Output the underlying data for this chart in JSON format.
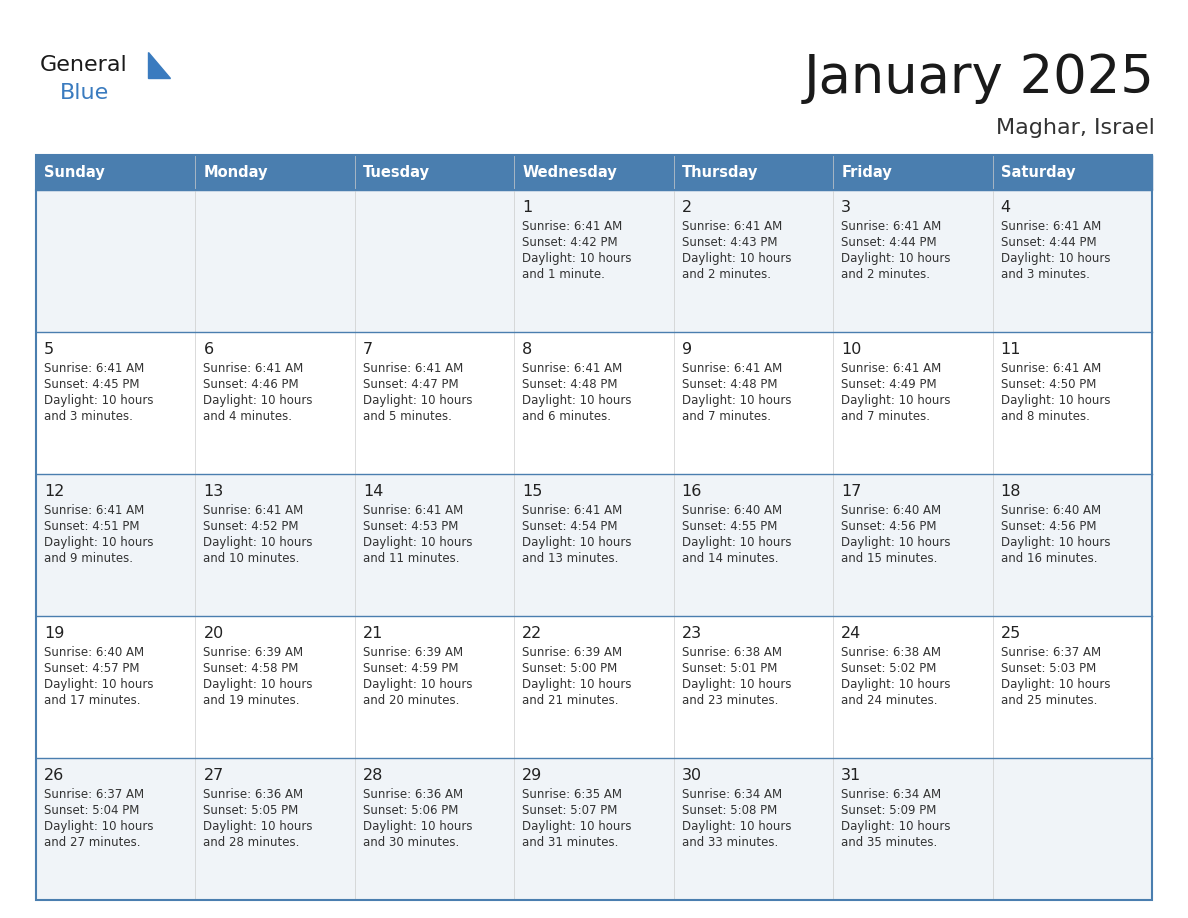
{
  "title": "January 2025",
  "subtitle": "Maghar, Israel",
  "days_of_week": [
    "Sunday",
    "Monday",
    "Tuesday",
    "Wednesday",
    "Thursday",
    "Friday",
    "Saturday"
  ],
  "header_bg": "#4A7EAF",
  "header_text_color": "#ffffff",
  "cell_bg_odd": "#f0f4f8",
  "cell_bg_even": "#ffffff",
  "text_color": "#333333",
  "border_color": "#4A7EAF",
  "grid_color": "#4A7EAF",
  "days": [
    {
      "day": null,
      "sunrise": null,
      "sunset": null,
      "daylight": null
    },
    {
      "day": null,
      "sunrise": null,
      "sunset": null,
      "daylight": null
    },
    {
      "day": null,
      "sunrise": null,
      "sunset": null,
      "daylight": null
    },
    {
      "day": 1,
      "sunrise": "6:41 AM",
      "sunset": "4:42 PM",
      "daylight": "10 hours\nand 1 minute."
    },
    {
      "day": 2,
      "sunrise": "6:41 AM",
      "sunset": "4:43 PM",
      "daylight": "10 hours\nand 2 minutes."
    },
    {
      "day": 3,
      "sunrise": "6:41 AM",
      "sunset": "4:44 PM",
      "daylight": "10 hours\nand 2 minutes."
    },
    {
      "day": 4,
      "sunrise": "6:41 AM",
      "sunset": "4:44 PM",
      "daylight": "10 hours\nand 3 minutes."
    },
    {
      "day": 5,
      "sunrise": "6:41 AM",
      "sunset": "4:45 PM",
      "daylight": "10 hours\nand 3 minutes."
    },
    {
      "day": 6,
      "sunrise": "6:41 AM",
      "sunset": "4:46 PM",
      "daylight": "10 hours\nand 4 minutes."
    },
    {
      "day": 7,
      "sunrise": "6:41 AM",
      "sunset": "4:47 PM",
      "daylight": "10 hours\nand 5 minutes."
    },
    {
      "day": 8,
      "sunrise": "6:41 AM",
      "sunset": "4:48 PM",
      "daylight": "10 hours\nand 6 minutes."
    },
    {
      "day": 9,
      "sunrise": "6:41 AM",
      "sunset": "4:48 PM",
      "daylight": "10 hours\nand 7 minutes."
    },
    {
      "day": 10,
      "sunrise": "6:41 AM",
      "sunset": "4:49 PM",
      "daylight": "10 hours\nand 7 minutes."
    },
    {
      "day": 11,
      "sunrise": "6:41 AM",
      "sunset": "4:50 PM",
      "daylight": "10 hours\nand 8 minutes."
    },
    {
      "day": 12,
      "sunrise": "6:41 AM",
      "sunset": "4:51 PM",
      "daylight": "10 hours\nand 9 minutes."
    },
    {
      "day": 13,
      "sunrise": "6:41 AM",
      "sunset": "4:52 PM",
      "daylight": "10 hours\nand 10 minutes."
    },
    {
      "day": 14,
      "sunrise": "6:41 AM",
      "sunset": "4:53 PM",
      "daylight": "10 hours\nand 11 minutes."
    },
    {
      "day": 15,
      "sunrise": "6:41 AM",
      "sunset": "4:54 PM",
      "daylight": "10 hours\nand 13 minutes."
    },
    {
      "day": 16,
      "sunrise": "6:40 AM",
      "sunset": "4:55 PM",
      "daylight": "10 hours\nand 14 minutes."
    },
    {
      "day": 17,
      "sunrise": "6:40 AM",
      "sunset": "4:56 PM",
      "daylight": "10 hours\nand 15 minutes."
    },
    {
      "day": 18,
      "sunrise": "6:40 AM",
      "sunset": "4:56 PM",
      "daylight": "10 hours\nand 16 minutes."
    },
    {
      "day": 19,
      "sunrise": "6:40 AM",
      "sunset": "4:57 PM",
      "daylight": "10 hours\nand 17 minutes."
    },
    {
      "day": 20,
      "sunrise": "6:39 AM",
      "sunset": "4:58 PM",
      "daylight": "10 hours\nand 19 minutes."
    },
    {
      "day": 21,
      "sunrise": "6:39 AM",
      "sunset": "4:59 PM",
      "daylight": "10 hours\nand 20 minutes."
    },
    {
      "day": 22,
      "sunrise": "6:39 AM",
      "sunset": "5:00 PM",
      "daylight": "10 hours\nand 21 minutes."
    },
    {
      "day": 23,
      "sunrise": "6:38 AM",
      "sunset": "5:01 PM",
      "daylight": "10 hours\nand 23 minutes."
    },
    {
      "day": 24,
      "sunrise": "6:38 AM",
      "sunset": "5:02 PM",
      "daylight": "10 hours\nand 24 minutes."
    },
    {
      "day": 25,
      "sunrise": "6:37 AM",
      "sunset": "5:03 PM",
      "daylight": "10 hours\nand 25 minutes."
    },
    {
      "day": 26,
      "sunrise": "6:37 AM",
      "sunset": "5:04 PM",
      "daylight": "10 hours\nand 27 minutes."
    },
    {
      "day": 27,
      "sunrise": "6:36 AM",
      "sunset": "5:05 PM",
      "daylight": "10 hours\nand 28 minutes."
    },
    {
      "day": 28,
      "sunrise": "6:36 AM",
      "sunset": "5:06 PM",
      "daylight": "10 hours\nand 30 minutes."
    },
    {
      "day": 29,
      "sunrise": "6:35 AM",
      "sunset": "5:07 PM",
      "daylight": "10 hours\nand 31 minutes."
    },
    {
      "day": 30,
      "sunrise": "6:34 AM",
      "sunset": "5:08 PM",
      "daylight": "10 hours\nand 33 minutes."
    },
    {
      "day": 31,
      "sunrise": "6:34 AM",
      "sunset": "5:09 PM",
      "daylight": "10 hours\nand 35 minutes."
    },
    {
      "day": null,
      "sunrise": null,
      "sunset": null,
      "daylight": null
    }
  ],
  "logo_general_color": "#1a1a1a",
  "logo_blue_color": "#3a7bbf",
  "logo_triangle_color": "#3a7bbf"
}
